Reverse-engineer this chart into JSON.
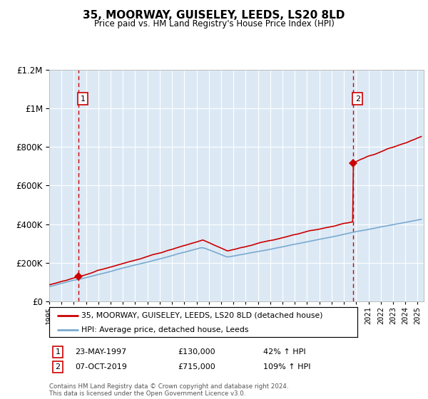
{
  "title": "35, MOORWAY, GUISELEY, LEEDS, LS20 8LD",
  "subtitle": "Price paid vs. HM Land Registry's House Price Index (HPI)",
  "legend_property": "35, MOORWAY, GUISELEY, LEEDS, LS20 8LD (detached house)",
  "legend_hpi": "HPI: Average price, detached house, Leeds",
  "sale1_year": 1997.39,
  "sale1_price": 130000,
  "sale1_label": "1",
  "sale1_date": "23-MAY-1997",
  "sale1_pct": "42% ↑ HPI",
  "sale2_year": 2019.76,
  "sale2_price": 715000,
  "sale2_label": "2",
  "sale2_date": "07-OCT-2019",
  "sale2_pct": "109% ↑ HPI",
  "xmin": 1995,
  "xmax": 2025.5,
  "ymin": 0,
  "ymax": 1200000,
  "property_color": "#cc0000",
  "hpi_color": "#7aaacf",
  "bg_color": "#dce9f5",
  "grid_color": "#ffffff",
  "footer": "Contains HM Land Registry data © Crown copyright and database right 2024.\nThis data is licensed under the Open Government Licence v3.0."
}
